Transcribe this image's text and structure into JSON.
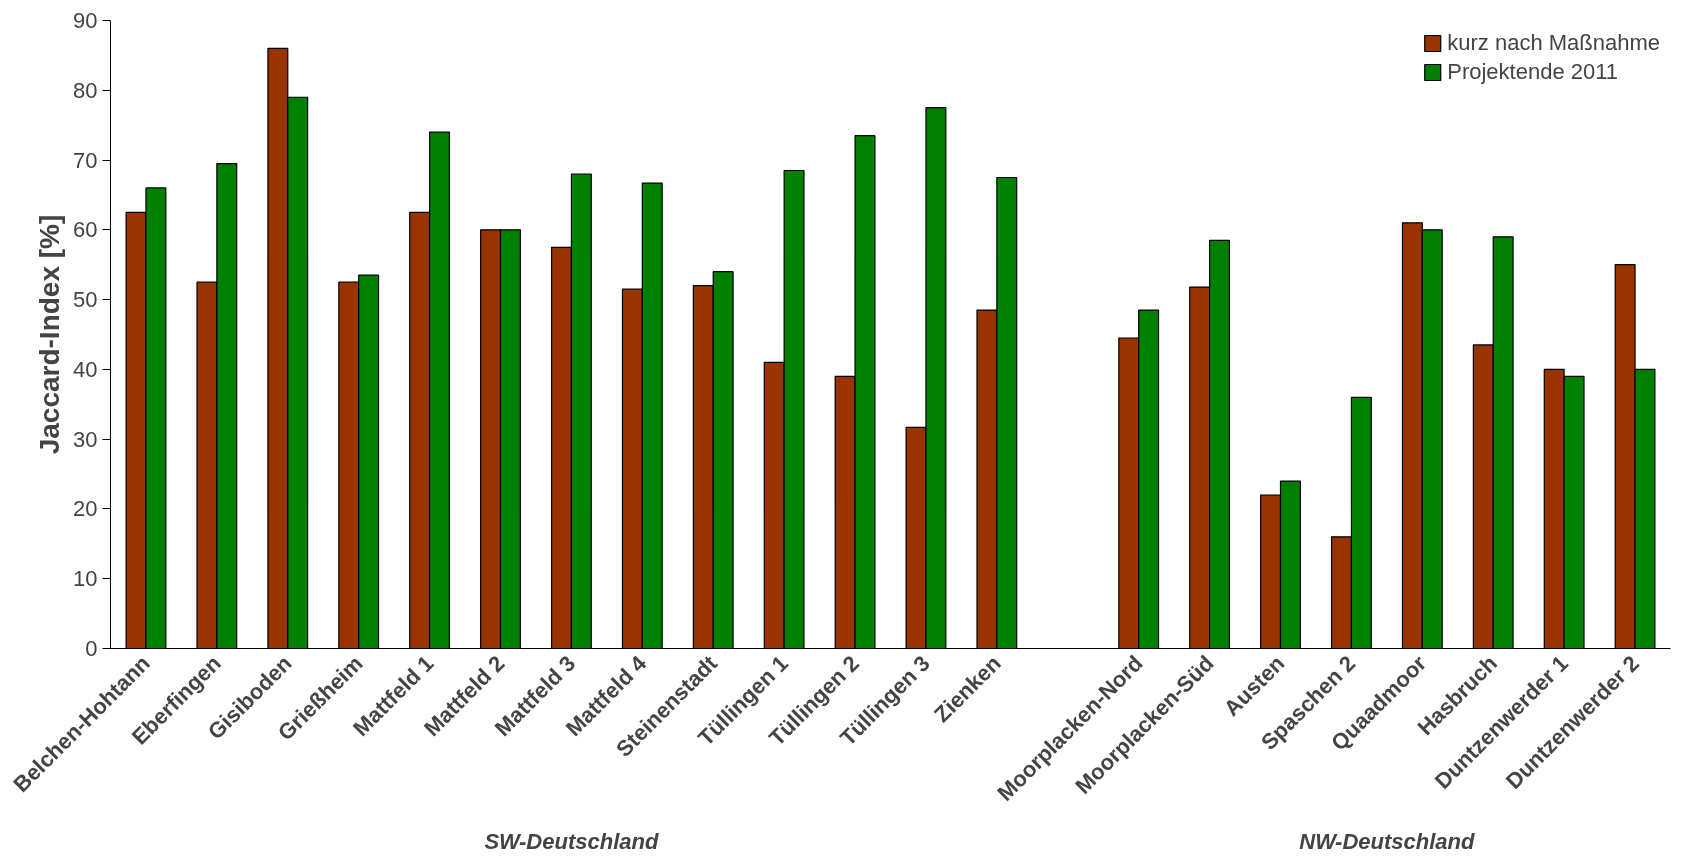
{
  "chart_data": {
    "type": "bar",
    "ylabel": "Jaccard-Index [%]",
    "categories": [
      "Belchen-Hohtann",
      "Eberfingen",
      "Gisiboden",
      "Grießheim",
      "Mattfeld 1",
      "Mattfeld 2",
      "Mattfeld 3",
      "Mattfeld 4",
      "Steinenstadt",
      "Tüllingen 1",
      "Tüllingen 2",
      "Tüllingen 3",
      "Zienken",
      null,
      "Moorplacken-Nord",
      "Moorplacken-Süd",
      "Austen",
      "Spaschen 2",
      "Quaadmoor",
      "Hasbruch",
      "Duntzenwerder 1",
      "Duntzenwerder 2"
    ],
    "series": [
      {
        "name": "kurz nach Maßnahme",
        "color": "#993300",
        "values": [
          62.5,
          52.5,
          86,
          52.5,
          62.5,
          60,
          57.5,
          51.5,
          52,
          41,
          39,
          31.7,
          48.5,
          null,
          44.5,
          51.8,
          22,
          16,
          61,
          43.5,
          40,
          55
        ]
      },
      {
        "name": "Projektende 2011",
        "color": "#008000",
        "values": [
          66,
          69.5,
          79,
          53.5,
          74,
          60,
          68,
          66.7,
          54,
          68.5,
          73.5,
          77.5,
          67.5,
          null,
          48.5,
          58.5,
          24,
          36,
          60,
          59,
          39,
          40
        ]
      }
    ],
    "ylim": [
      0,
      90
    ],
    "yticks": [
      0,
      10,
      20,
      30,
      40,
      50,
      60,
      70,
      80,
      90
    ],
    "grid": false,
    "legend": "top right",
    "annotations": [
      "SW-Deutschland",
      "NW-Deutschland"
    ]
  }
}
